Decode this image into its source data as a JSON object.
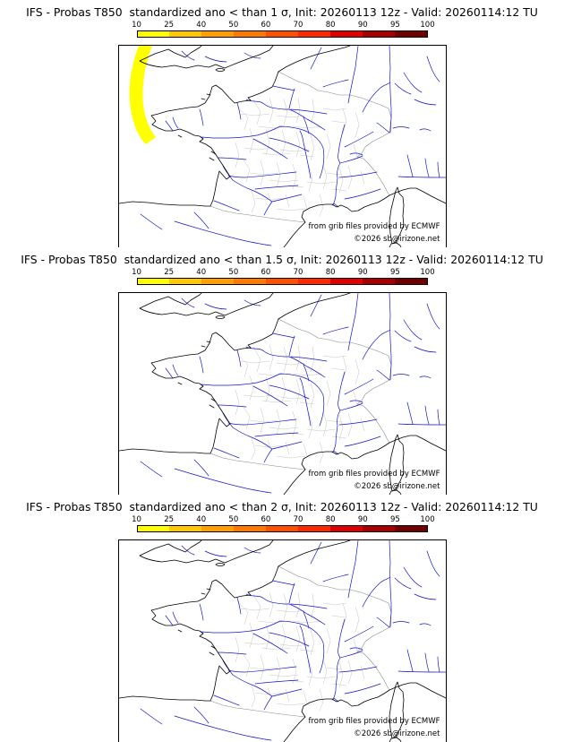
{
  "panels": [
    {
      "title": "IFS - Probas T850  standardized ano < than 1 σ, Init: 20260113 12z - Valid: 20260114:12 TU",
      "attribution_line1": "from grib files provided by ECMWF",
      "attribution_line2": "©2026 sb@irizone.net"
    },
    {
      "title": "IFS - Probas T850  standardized ano < than 1.5 σ, Init: 20260113 12z - Valid: 20260114:12 TU",
      "attribution_line1": "from grib files provided by ECMWF",
      "attribution_line2": "©2026 sb@irizone.net"
    },
    {
      "title": "IFS - Probas T850  standardized ano < than 2 σ, Init: 20260113 12z - Valid: 20260114:12 TU",
      "attribution_line1": "from grib files provided by ECMWF",
      "attribution_line2": "©2026 sb@irizone.net"
    }
  ],
  "colorbar": {
    "tick_labels": [
      "10",
      "25",
      "40",
      "50",
      "60",
      "70",
      "80",
      "90",
      "95",
      "100"
    ],
    "segment_colors": [
      "#ffff00",
      "#ffc800",
      "#ffa000",
      "#ff7800",
      "#ff5000",
      "#ff2800",
      "#e00000",
      "#a80000",
      "#700000"
    ]
  },
  "colors": {
    "anomaly_region": "#ffff00",
    "river": "#1515cc",
    "coast": "#000000",
    "department_boundary": "#c4c4c4"
  }
}
